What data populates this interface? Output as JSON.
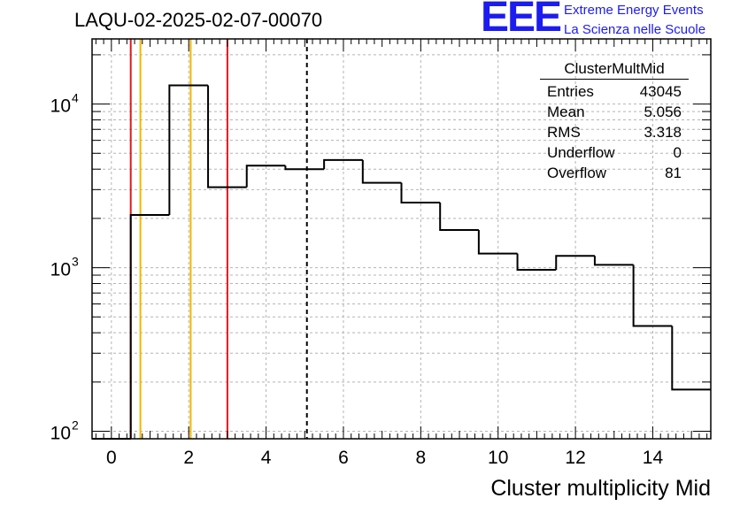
{
  "title": "LAQU-02-2025-02-07-00070",
  "logo": {
    "mark": "EEE",
    "line1": "Extreme Energy Events",
    "line2": "La Scienza nelle Scuole"
  },
  "stats_box": {
    "name": "ClusterMultMid",
    "rows": [
      {
        "label": "Entries",
        "value": "43045"
      },
      {
        "label": "Mean",
        "value": "5.056"
      },
      {
        "label": "RMS",
        "value": "3.318"
      },
      {
        "label": "Underflow",
        "value": "0"
      },
      {
        "label": "Overflow",
        "value": "81"
      }
    ]
  },
  "chart_data": {
    "type": "bar",
    "style": "step-histogram",
    "xlabel": "Cluster multiplicity Mid",
    "ylabel": "",
    "xlim": [
      -0.5,
      15.5
    ],
    "ylim": [
      90,
      25000
    ],
    "yscale": "log",
    "grid": true,
    "x_ticks": [
      0,
      2,
      4,
      6,
      8,
      10,
      12,
      14
    ],
    "y_ticks": [
      {
        "value": 100,
        "base": "10",
        "exp": "2"
      },
      {
        "value": 1000,
        "base": "10",
        "exp": "3"
      },
      {
        "value": 10000,
        "base": "10",
        "exp": "4"
      }
    ],
    "bins": [
      {
        "low": -0.5,
        "high": 0.5,
        "count": 0
      },
      {
        "low": 0.5,
        "high": 1.5,
        "count": 2100
      },
      {
        "low": 1.5,
        "high": 2.5,
        "count": 13000
      },
      {
        "low": 2.5,
        "high": 3.5,
        "count": 3100
      },
      {
        "low": 3.5,
        "high": 4.5,
        "count": 4200
      },
      {
        "low": 4.5,
        "high": 5.5,
        "count": 4000
      },
      {
        "low": 5.5,
        "high": 6.5,
        "count": 4550
      },
      {
        "low": 6.5,
        "high": 7.5,
        "count": 3300
      },
      {
        "low": 7.5,
        "high": 8.5,
        "count": 2500
      },
      {
        "low": 8.5,
        "high": 9.5,
        "count": 1700
      },
      {
        "low": 9.5,
        "high": 10.5,
        "count": 1220
      },
      {
        "low": 10.5,
        "high": 11.5,
        "count": 970
      },
      {
        "low": 11.5,
        "high": 12.5,
        "count": 1180
      },
      {
        "low": 12.5,
        "high": 13.5,
        "count": 1040
      },
      {
        "low": 13.5,
        "high": 14.5,
        "count": 440
      },
      {
        "low": 14.5,
        "high": 15.5,
        "count": 180
      }
    ],
    "vertical_markers": [
      {
        "x": 0.5,
        "color": "#e8141c",
        "style": "solid"
      },
      {
        "x": 0.75,
        "color": "#f5b400",
        "style": "solid"
      },
      {
        "x": 2.05,
        "color": "#f5b400",
        "style": "solid"
      },
      {
        "x": 3.0,
        "color": "#e8141c",
        "style": "solid"
      },
      {
        "x": 5.056,
        "color": "#000000",
        "style": "dashed"
      }
    ]
  }
}
